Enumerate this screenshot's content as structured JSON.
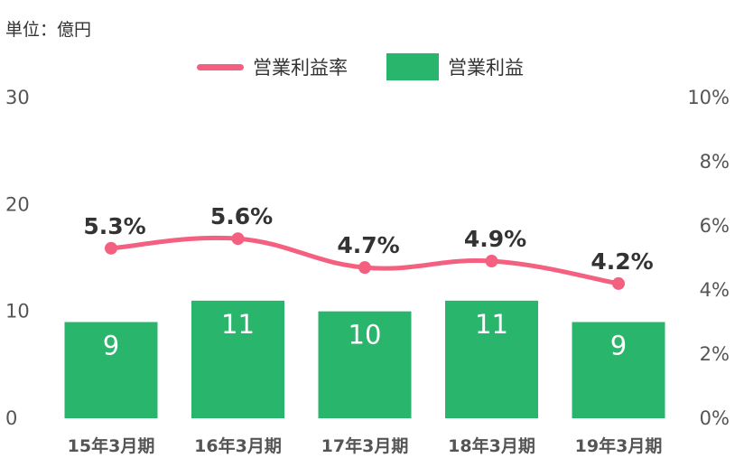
{
  "unit_label": "単位：億円",
  "colors": {
    "bar": "#2ab56d",
    "line": "#f4607f",
    "axis_text": "#555555",
    "value_text": "#333333",
    "bar_text": "#ffffff"
  },
  "legend": {
    "line_label": "営業利益率",
    "bar_label": "営業利益"
  },
  "chart_data": {
    "type": "bar",
    "categories": [
      "15年3月期",
      "16年3月期",
      "17年3月期",
      "18年3月期",
      "19年3月期"
    ],
    "series": [
      {
        "name": "営業利益",
        "type": "bar",
        "axis": "left",
        "values": [
          9,
          11,
          10,
          11,
          9
        ],
        "labels": [
          "9",
          "11",
          "10",
          "11",
          "9"
        ]
      },
      {
        "name": "営業利益率",
        "type": "line",
        "axis": "right",
        "values": [
          5.3,
          5.6,
          4.7,
          4.9,
          4.2
        ],
        "labels": [
          "5.3%",
          "5.6%",
          "4.7%",
          "4.9%",
          "4.2%"
        ]
      }
    ],
    "y_left": {
      "range": [
        0,
        30
      ],
      "ticks": [
        "0",
        "10",
        "20",
        "30"
      ]
    },
    "y_right": {
      "range": [
        0,
        10
      ],
      "ticks": [
        "0%",
        "2%",
        "4%",
        "6%",
        "8%",
        "10%"
      ]
    },
    "grid": false,
    "legend_position": "top-center"
  }
}
